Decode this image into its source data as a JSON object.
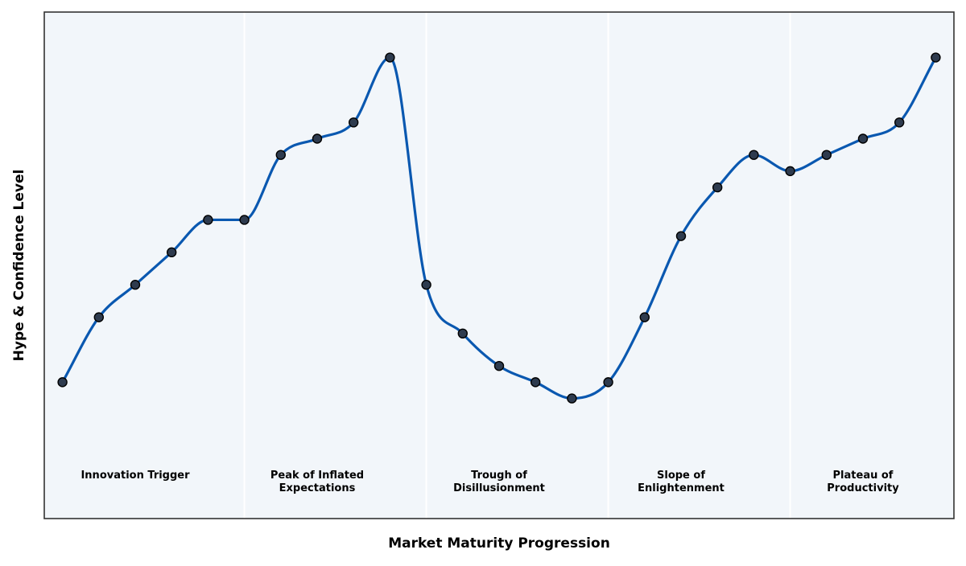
{
  "chart_data": {
    "type": "line",
    "title": "",
    "xlabel": "Market Maturity Progression",
    "ylabel": "Hype & Confidence Level",
    "x": [
      0,
      1,
      2,
      3,
      4,
      5,
      6,
      7,
      8,
      9,
      10,
      11,
      12,
      13,
      14,
      15,
      16,
      17,
      18,
      19,
      20,
      21,
      22,
      23,
      24
    ],
    "series": [
      {
        "name": "",
        "values": [
          4.0,
          5.0,
          5.5,
          6.0,
          6.5,
          6.5,
          7.5,
          7.75,
          8.0,
          9.0,
          5.5,
          4.75,
          4.25,
          4.0,
          3.75,
          4.0,
          5.0,
          6.25,
          7.0,
          7.5,
          7.25,
          7.5,
          7.75,
          8.0,
          9.0
        ]
      }
    ],
    "xlim": [
      -0.5,
      24.5
    ],
    "ylim": [
      1.9,
      9.7
    ],
    "grid": false,
    "phases": [
      {
        "label": [
          "Innovation Trigger"
        ],
        "start": -0.5,
        "end": 5,
        "center": 2
      },
      {
        "label": [
          "Peak of Inflated",
          "Expectations"
        ],
        "start": 5,
        "end": 10,
        "center": 7
      },
      {
        "label": [
          "Trough of",
          "Disillusionment"
        ],
        "start": 10,
        "end": 15,
        "center": 12
      },
      {
        "label": [
          "Slope of",
          "Enlightenment"
        ],
        "start": 15,
        "end": 20,
        "center": 17
      },
      {
        "label": [
          "Plateau of",
          "Productivity"
        ],
        "start": 20,
        "end": 24.5,
        "center": 22
      }
    ],
    "colors": {
      "line": "#0a58b0",
      "marker_fill": "#2e3b4e",
      "marker_edge": "#000000",
      "plot_background": "#f2f6fa",
      "divider": "#ffffff"
    }
  }
}
